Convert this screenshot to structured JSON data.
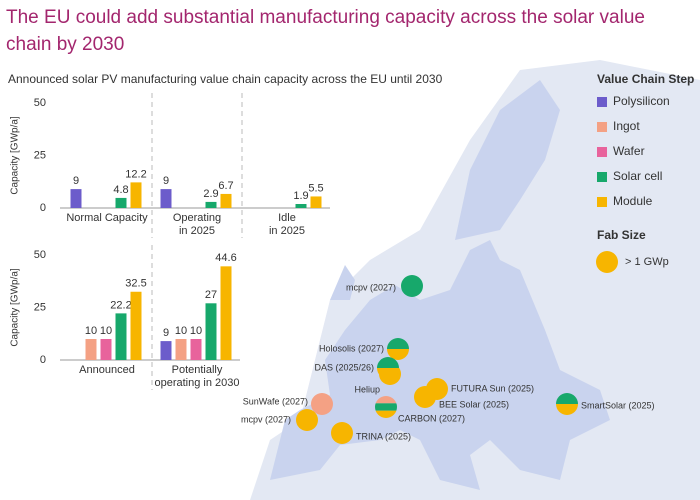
{
  "title": "The EU could add substantial manufacturing capacity across the solar value chain by 2030",
  "subtitle": "Announced solar PV manufacturing value chain capacity across the EU until 2030",
  "legend_title": "Value Chain Step",
  "fab_size": {
    "title": "Fab Size",
    "label": "> 1 GWp",
    "color": "#f7b500"
  },
  "chart_data": [
    {
      "type": "bar",
      "y_label": "Capacity [GWp/a]",
      "categories": [
        "Normal Capacity",
        "Operating\nin 2025",
        "Idle\nin 2025"
      ],
      "ylim": [
        0,
        50
      ],
      "yticks": [
        0,
        25,
        50
      ],
      "series": [
        {
          "name": "Polysilicon",
          "color": "#6c5ccb",
          "values": [
            9,
            9,
            null
          ]
        },
        {
          "name": "Ingot",
          "color": "#f4a184",
          "values": [
            null,
            null,
            null
          ]
        },
        {
          "name": "Wafer",
          "color": "#e8639c",
          "values": [
            null,
            null,
            null
          ]
        },
        {
          "name": "Solar cell",
          "color": "#17a86b",
          "values": [
            4.8,
            2.9,
            1.9
          ]
        },
        {
          "name": "Module",
          "color": "#f7b500",
          "values": [
            12.2,
            6.7,
            5.5
          ]
        }
      ]
    },
    {
      "type": "bar",
      "y_label": "Capacity [GWp/a]",
      "categories": [
        "Announced",
        "Potentially\noperating in 2030"
      ],
      "ylim": [
        0,
        50
      ],
      "yticks": [
        0,
        25,
        50
      ],
      "series": [
        {
          "name": "Polysilicon",
          "color": "#6c5ccb",
          "values": [
            null,
            9
          ]
        },
        {
          "name": "Ingot",
          "color": "#f4a184",
          "values": [
            10,
            10
          ]
        },
        {
          "name": "Wafer",
          "color": "#e8639c",
          "values": [
            10,
            10
          ]
        },
        {
          "name": "Solar cell",
          "color": "#17a86b",
          "values": [
            22.2,
            27
          ]
        },
        {
          "name": "Module",
          "color": "#f7b500",
          "values": [
            32.5,
            44.6
          ]
        }
      ]
    }
  ],
  "fabs": [
    {
      "label": "mcpv (2027)",
      "colors": [
        "#17a86b"
      ]
    },
    {
      "label": "Heliup",
      "colors": [
        "#f7b500"
      ]
    },
    {
      "label": "Holosolis (2027)",
      "colors": [
        "#17a86b",
        "#f7b500"
      ]
    },
    {
      "label": "DAS (2025/26)",
      "colors": [
        "#17a86b",
        "#f7b500"
      ]
    },
    {
      "label": "FUTURA Sun (2025)",
      "colors": [
        "#f7b500"
      ]
    },
    {
      "label": "BEE Solar (2025)",
      "colors": [
        "#f7b500"
      ]
    },
    {
      "label": "CARBON (2027)",
      "colors": [
        "#f4a184",
        "#17a86b",
        "#f7b500"
      ]
    },
    {
      "label": "SunWafe (2027)",
      "colors": [
        "#f4a184"
      ]
    },
    {
      "label": "mcpv (2027)",
      "colors": [
        "#f7b500"
      ]
    },
    {
      "label": "TRINA (2025)",
      "colors": [
        "#f7b500"
      ]
    },
    {
      "label": "SmartSolar (2025)",
      "colors": [
        "#17a86b",
        "#f7b500"
      ]
    }
  ]
}
